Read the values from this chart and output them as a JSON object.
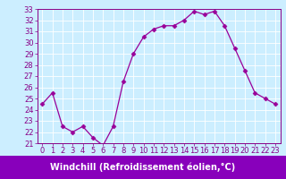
{
  "hours": [
    0,
    1,
    2,
    3,
    4,
    5,
    6,
    7,
    8,
    9,
    10,
    11,
    12,
    13,
    14,
    15,
    16,
    17,
    18,
    19,
    20,
    21,
    22,
    23
  ],
  "values": [
    24.5,
    25.5,
    22.5,
    22.0,
    22.5,
    21.5,
    20.8,
    22.5,
    26.5,
    29.0,
    30.5,
    31.2,
    31.5,
    31.5,
    32.0,
    32.8,
    32.5,
    32.8,
    31.5,
    29.5,
    27.5,
    25.5,
    25.0,
    24.5
  ],
  "line_color": "#990099",
  "marker": "D",
  "marker_size": 2.5,
  "bg_color": "#cceeff",
  "grid_color": "#ffffff",
  "xlabel": "Windchill (Refroidissement éolien,°C)",
  "xlabel_color": "#ffffff",
  "xlabel_bg": "#8800bb",
  "ylim": [
    21,
    33
  ],
  "xlim": [
    -0.5,
    23.5
  ],
  "yticks": [
    21,
    22,
    23,
    24,
    25,
    26,
    27,
    28,
    29,
    30,
    31,
    32,
    33
  ],
  "xticks": [
    0,
    1,
    2,
    3,
    4,
    5,
    6,
    7,
    8,
    9,
    10,
    11,
    12,
    13,
    14,
    15,
    16,
    17,
    18,
    19,
    20,
    21,
    22,
    23
  ],
  "tick_color": "#880088",
  "tick_fontsize": 6,
  "label_fontsize": 7,
  "spine_color": "#880088"
}
